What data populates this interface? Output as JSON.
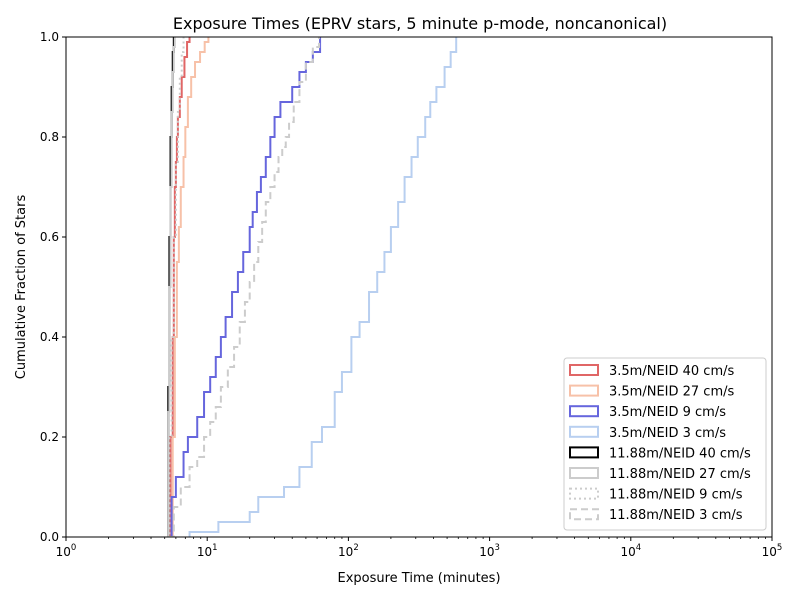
{
  "chart_data": {
    "type": "line",
    "title": "Exposure Times (EPRV stars, 5 minute p-mode, noncanonical)",
    "xlabel": "Exposure Time (minutes)",
    "ylabel": "Cumulative Fraction of Stars",
    "xscale": "log",
    "xlim": [
      1,
      100000
    ],
    "ylim": [
      0,
      1.0
    ],
    "x_ticks": [
      {
        "value": 1,
        "base": "10",
        "exp": "0"
      },
      {
        "value": 10,
        "base": "10",
        "exp": "1"
      },
      {
        "value": 100,
        "base": "10",
        "exp": "2"
      },
      {
        "value": 1000,
        "base": "10",
        "exp": "3"
      },
      {
        "value": 10000,
        "base": "10",
        "exp": "4"
      },
      {
        "value": 100000,
        "base": "10",
        "exp": "5"
      }
    ],
    "y_ticks": [
      "0.0",
      "0.2",
      "0.4",
      "0.6",
      "0.8",
      "1.0"
    ],
    "grid": false,
    "legend_position": "lower-right",
    "series": [
      {
        "name": "3.5m/NEID 40 cm/s",
        "color": "#e06666",
        "dash": "solid",
        "width": 2,
        "x": [
          5.3,
          5.5,
          5.7,
          5.8,
          5.9,
          6.0,
          6.1,
          6.2,
          6.4,
          6.6,
          6.9,
          7.2,
          7.5
        ],
        "y": [
          0.0,
          0.2,
          0.4,
          0.6,
          0.7,
          0.75,
          0.8,
          0.84,
          0.88,
          0.92,
          0.96,
          0.99,
          1.0
        ]
      },
      {
        "name": "3.5m/NEID 27 cm/s",
        "color": "#f7c1a8",
        "dash": "solid",
        "width": 2,
        "x": [
          5.4,
          5.7,
          5.9,
          6.1,
          6.3,
          6.5,
          6.8,
          7.0,
          7.3,
          7.7,
          8.2,
          8.9,
          9.6,
          10.2
        ],
        "y": [
          0.0,
          0.2,
          0.4,
          0.55,
          0.62,
          0.7,
          0.76,
          0.82,
          0.88,
          0.92,
          0.95,
          0.97,
          0.99,
          1.0
        ]
      },
      {
        "name": "3.5m/NEID 9 cm/s",
        "color": "#6666dd",
        "dash": "solid",
        "width": 2,
        "x": [
          5.2,
          5.6,
          6.0,
          6.8,
          7.3,
          8.5,
          9.5,
          10.5,
          11.5,
          12.5,
          13.5,
          15.0,
          16.5,
          18.0,
          20.0,
          21.0,
          22.5,
          24.0,
          26.0,
          28.0,
          30.0,
          33.0,
          36.0,
          40.0,
          45.0,
          50.0,
          56.0,
          63.0
        ],
        "y": [
          0.0,
          0.08,
          0.12,
          0.17,
          0.2,
          0.24,
          0.29,
          0.32,
          0.36,
          0.4,
          0.44,
          0.49,
          0.53,
          0.57,
          0.62,
          0.65,
          0.69,
          0.72,
          0.76,
          0.8,
          0.84,
          0.87,
          0.87,
          0.9,
          0.93,
          0.95,
          0.97,
          1.0
        ]
      },
      {
        "name": "3.5m/NEID 3 cm/s",
        "color": "#b8cff0",
        "dash": "solid",
        "width": 2,
        "x": [
          7.5,
          12.0,
          20.0,
          23.0,
          26.0,
          35.0,
          45.0,
          55.0,
          65.0,
          80.0,
          90.0,
          105.0,
          120.0,
          140.0,
          160.0,
          180.0,
          200.0,
          225.0,
          250.0,
          280.0,
          310.0,
          350.0,
          380.0,
          420.0,
          480.0,
          530.0,
          580.0
        ],
        "y": [
          0.01,
          0.03,
          0.05,
          0.08,
          0.08,
          0.1,
          0.14,
          0.19,
          0.22,
          0.29,
          0.33,
          0.4,
          0.43,
          0.49,
          0.53,
          0.57,
          0.62,
          0.67,
          0.72,
          0.76,
          0.8,
          0.84,
          0.87,
          0.9,
          0.94,
          0.97,
          1.0
        ]
      },
      {
        "name": "11.88m/NEID 40 cm/s",
        "color": "#000000",
        "dash": "solid",
        "width": 2,
        "x": [
          5.2,
          5.3,
          5.4,
          5.5,
          5.6,
          5.7,
          5.8
        ],
        "y": [
          0.0,
          0.3,
          0.6,
          0.8,
          0.9,
          0.97,
          1.0
        ]
      },
      {
        "name": "11.88m/NEID 27 cm/s",
        "color": "#cccccc",
        "dash": "solid",
        "width": 2,
        "x": [
          5.2,
          5.3,
          5.4,
          5.5,
          5.6,
          5.7,
          5.8,
          5.9
        ],
        "y": [
          0.0,
          0.25,
          0.5,
          0.7,
          0.85,
          0.93,
          0.98,
          1.0
        ]
      },
      {
        "name": "11.88m/NEID 9 cm/s",
        "color": "#cccccc",
        "dash": "dotted",
        "width": 2,
        "x": [
          5.2,
          5.4,
          5.6,
          5.8,
          6.0,
          6.2,
          6.4,
          6.6,
          6.8
        ],
        "y": [
          0.0,
          0.2,
          0.4,
          0.6,
          0.75,
          0.85,
          0.92,
          0.97,
          1.0
        ]
      },
      {
        "name": "11.88m/NEID 3 cm/s",
        "color": "#cccccc",
        "dash": "dashed",
        "width": 2,
        "x": [
          5.3,
          5.8,
          6.5,
          7.5,
          8.5,
          9.5,
          10.5,
          11.5,
          12.5,
          14.0,
          15.5,
          17.0,
          18.5,
          20.0,
          21.5,
          23.0,
          24.5,
          26.0,
          28.0,
          30.0,
          32.0,
          34.0,
          36.0,
          38.0,
          41.0,
          45.0,
          50.0,
          56.0,
          62.0
        ],
        "y": [
          0.0,
          0.06,
          0.1,
          0.14,
          0.16,
          0.2,
          0.23,
          0.26,
          0.3,
          0.34,
          0.38,
          0.43,
          0.47,
          0.51,
          0.55,
          0.59,
          0.63,
          0.67,
          0.7,
          0.73,
          0.76,
          0.78,
          0.8,
          0.83,
          0.87,
          0.91,
          0.95,
          0.98,
          1.0
        ]
      }
    ]
  }
}
